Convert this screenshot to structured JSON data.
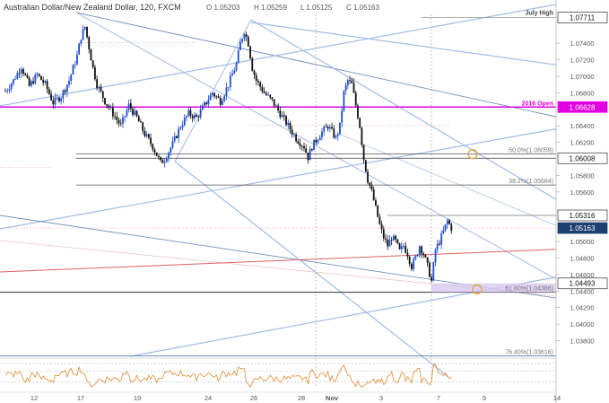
{
  "title": "Australian Dollar/New Zealand Dollar, 120, FXCM",
  "ohlc_readout": {
    "open": "O 1.05203",
    "high": "H 1.05259",
    "low": "L 1.05125",
    "close": "C 1.05163"
  },
  "colors": {
    "up": "#1f4fcf",
    "down": "#111111",
    "trendline": "#9fbde6",
    "trendline_dark": "#6f91bf",
    "magenta": "#e000e0",
    "red": "#e06060",
    "orange": "#e8a040",
    "rsi": "#e08a30",
    "price_box": "#1c3f70",
    "zone": "#d9c8f0"
  },
  "chart_data": {
    "type": "candlestick",
    "title": "Australian Dollar/New Zealand Dollar, 120, FXCM",
    "ylim": [
      1.0361,
      1.0775
    ],
    "price_axis_labels": [
      "1.07711",
      "1.07400",
      "1.07200",
      "1.07000",
      "1.06800",
      "1.06628",
      "1.06400",
      "1.06200",
      "1.06008",
      "1.05800",
      "1.05600",
      "1.05316",
      "1.05163",
      "1.05000",
      "1.04800",
      "1.04600",
      "1.04493",
      "1.04400",
      "1.04200",
      "1.04000",
      "1.03800"
    ],
    "x_tick_labels": [
      "12",
      "17",
      "19",
      "24",
      "26",
      "28",
      "Nov",
      "3",
      "7",
      "9",
      "14"
    ],
    "highlighted_levels": [
      {
        "label": "July High",
        "price": 1.07711,
        "box": "1.07711"
      },
      {
        "label": "2016 Open",
        "price": 1.06628,
        "box": "1.06628"
      },
      {
        "label": "50.0%(1.06059)",
        "price": 1.06059
      },
      {
        "label": "",
        "price": 1.06008,
        "box": "1.06008"
      },
      {
        "label": "38.2%(1.05684)",
        "price": 1.05684
      },
      {
        "label": "",
        "price": 1.05316,
        "box": "1.05316"
      },
      {
        "label": "",
        "price": 1.05163,
        "box": "1.05163"
      },
      {
        "label": "",
        "price": 1.04493,
        "box": "1.04493"
      },
      {
        "label": "61.80%(1.04386)",
        "price": 1.04386
      },
      {
        "label": "76.40%(1.03616)",
        "price": 1.03616
      }
    ],
    "close_series_points": [
      [
        0,
        1.0682
      ],
      [
        4,
        1.0695
      ],
      [
        8,
        1.0712
      ],
      [
        12,
        1.0688
      ],
      [
        16,
        1.0702
      ],
      [
        20,
        1.069
      ],
      [
        24,
        1.0668
      ],
      [
        28,
        1.0676
      ],
      [
        32,
        1.0695
      ],
      [
        36,
        1.0725
      ],
      [
        38,
        1.0748
      ],
      [
        40,
        1.076
      ],
      [
        42,
        1.0735
      ],
      [
        44,
        1.071
      ],
      [
        46,
        1.069
      ],
      [
        50,
        1.067
      ],
      [
        54,
        1.0655
      ],
      [
        58,
        1.064
      ],
      [
        62,
        1.0665
      ],
      [
        66,
        1.065
      ],
      [
        70,
        1.063
      ],
      [
        74,
        1.0615
      ],
      [
        76,
        1.0605
      ],
      [
        78,
        1.0595
      ],
      [
        80,
        1.06
      ],
      [
        84,
        1.0618
      ],
      [
        88,
        1.064
      ],
      [
        92,
        1.0655
      ],
      [
        96,
        1.065
      ],
      [
        100,
        1.0665
      ],
      [
        104,
        1.068
      ],
      [
        108,
        1.067
      ],
      [
        112,
        1.069
      ],
      [
        116,
        1.0715
      ],
      [
        118,
        1.074
      ],
      [
        120,
        1.0755
      ],
      [
        122,
        1.074
      ],
      [
        124,
        1.071
      ],
      [
        126,
        1.0695
      ],
      [
        130,
        1.068
      ],
      [
        134,
        1.067
      ],
      [
        138,
        1.0655
      ],
      [
        142,
        1.064
      ],
      [
        146,
        1.0625
      ],
      [
        150,
        1.0615
      ],
      [
        152,
        1.0602
      ],
      [
        154,
        1.0615
      ],
      [
        158,
        1.063
      ],
      [
        162,
        1.064
      ],
      [
        166,
        1.0625
      ],
      [
        168,
        1.064
      ],
      [
        170,
        1.068
      ],
      [
        172,
        1.0695
      ],
      [
        174,
        1.069
      ],
      [
        176,
        1.0665
      ],
      [
        178,
        1.064
      ],
      [
        180,
        1.06
      ],
      [
        182,
        1.0575
      ],
      [
        184,
        1.056
      ],
      [
        186,
        1.054
      ],
      [
        188,
        1.052
      ],
      [
        190,
        1.0505
      ],
      [
        192,
        1.0495
      ],
      [
        194,
        1.0505
      ],
      [
        196,
        1.05
      ],
      [
        198,
        1.0488
      ],
      [
        200,
        1.0495
      ],
      [
        202,
        1.0485
      ],
      [
        204,
        1.047
      ],
      [
        206,
        1.048
      ],
      [
        208,
        1.0495
      ],
      [
        210,
        1.0485
      ],
      [
        212,
        1.047
      ],
      [
        214,
        1.0452
      ],
      [
        216,
        1.049
      ],
      [
        218,
        1.05
      ],
      [
        220,
        1.0512
      ],
      [
        222,
        1.0525
      ],
      [
        224,
        1.0516
      ]
    ],
    "rsi": {
      "levels": [
        "75.0000",
        "60.0000",
        "40.0000"
      ],
      "ylim": [
        25,
        80
      ]
    }
  }
}
